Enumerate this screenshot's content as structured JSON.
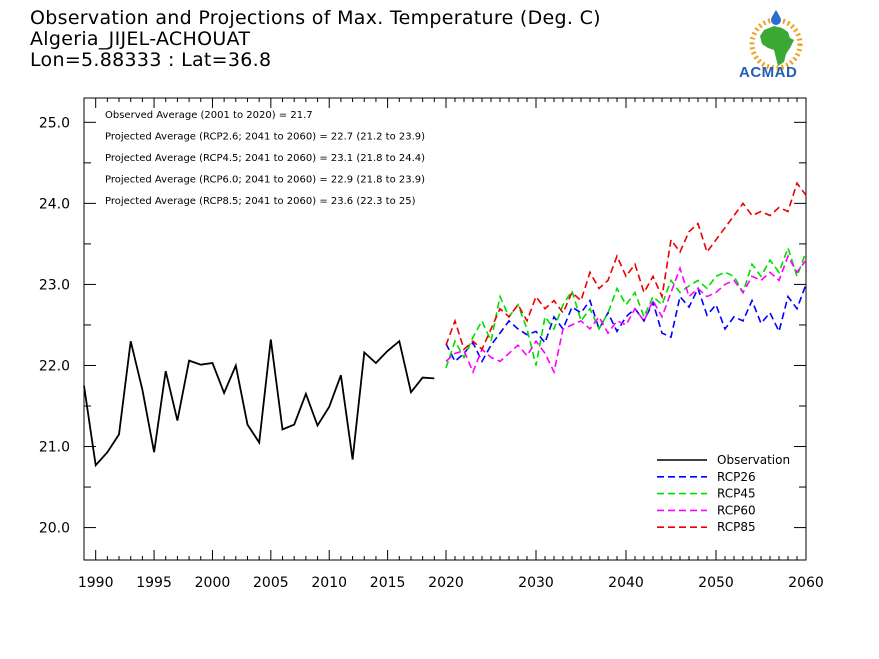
{
  "header": {
    "title": "Observation and Projections of Max. Temperature (Deg. C)",
    "station": "Algeria_JIJEL-ACHOUAT",
    "coords": "Lon=5.88333 : Lat=36.8"
  },
  "logo": {
    "text": "ACMAD",
    "colors": {
      "africa": "#3aa832",
      "sun": "#f0a020",
      "text": "#1f5fb4",
      "drop": "#2a6fd0"
    }
  },
  "chart_data": {
    "type": "line",
    "xlim": [
      1989,
      2060
    ],
    "ylim": [
      19.6,
      25.3
    ],
    "xticks": [
      1990,
      1995,
      2000,
      2005,
      2010,
      2015,
      2020,
      2030,
      2040,
      2050,
      2060
    ],
    "yticks": [
      20.0,
      21.0,
      22.0,
      23.0,
      24.0,
      25.0
    ],
    "ytick_labels": [
      "20.0",
      "21.0",
      "22.0",
      "23.0",
      "24.0",
      "25.0"
    ],
    "annotations": [
      "Observed Average (2001 to 2020) = 21.7",
      "Projected Average (RCP2.6; 2041 to 2060) = 22.7 (21.2 to 23.9)",
      "Projected Average (RCP4.5; 2041 to 2060) = 23.1 (21.8 to 24.4)",
      "Projected Average (RCP6.0; 2041 to 2060) = 22.9 (21.8 to 23.9)",
      "Projected Average (RCP8.5; 2041 to 2060) = 23.6 (22.3 to 25)"
    ],
    "legend_position": "bottom-right",
    "series": [
      {
        "name": "Observation",
        "color": "#000000",
        "dash": false,
        "x": [
          1989,
          1990,
          1991,
          1992,
          1993,
          1994,
          1995,
          1996,
          1997,
          1998,
          1999,
          2000,
          2001,
          2002,
          2003,
          2004,
          2005,
          2006,
          2007,
          2008,
          2009,
          2010,
          2011,
          2012,
          2013,
          2014,
          2015,
          2016,
          2017,
          2018,
          2019
        ],
        "y": [
          21.75,
          20.77,
          20.93,
          21.15,
          22.3,
          21.7,
          20.93,
          21.93,
          21.32,
          22.06,
          22.01,
          22.03,
          21.66,
          22.0,
          21.27,
          21.05,
          22.32,
          21.21,
          21.27,
          21.65,
          21.26,
          21.49,
          21.88,
          20.84,
          22.16,
          22.03,
          22.18,
          22.3,
          21.67,
          21.85,
          21.84
        ]
      },
      {
        "name": "RCP26",
        "color": "#0000ff",
        "dash": true,
        "x": [
          2020,
          2021,
          2022,
          2023,
          2024,
          2025,
          2026,
          2027,
          2028,
          2029,
          2030,
          2031,
          2032,
          2033,
          2034,
          2035,
          2036,
          2037,
          2038,
          2039,
          2040,
          2041,
          2042,
          2043,
          2044,
          2045,
          2046,
          2047,
          2048,
          2049,
          2050,
          2051,
          2052,
          2053,
          2054,
          2055,
          2056,
          2057,
          2058,
          2059,
          2060
        ],
        "y": [
          22.27,
          22.05,
          22.15,
          22.28,
          22.05,
          22.25,
          22.4,
          22.55,
          22.45,
          22.38,
          22.42,
          22.28,
          22.6,
          22.45,
          22.72,
          22.65,
          22.8,
          22.45,
          22.65,
          22.42,
          22.6,
          22.7,
          22.55,
          22.78,
          22.4,
          22.35,
          22.85,
          22.72,
          22.95,
          22.62,
          22.75,
          22.45,
          22.6,
          22.55,
          22.8,
          22.52,
          22.65,
          22.42,
          22.85,
          22.7,
          23.0
        ]
      },
      {
        "name": "RCP45",
        "color": "#00dd00",
        "dash": true,
        "x": [
          2020,
          2021,
          2022,
          2023,
          2024,
          2025,
          2026,
          2027,
          2028,
          2029,
          2030,
          2031,
          2032,
          2033,
          2034,
          2035,
          2036,
          2037,
          2038,
          2039,
          2040,
          2041,
          2042,
          2043,
          2044,
          2045,
          2046,
          2047,
          2048,
          2049,
          2050,
          2051,
          2052,
          2053,
          2054,
          2055,
          2056,
          2057,
          2058,
          2059,
          2060
        ],
        "y": [
          21.97,
          22.3,
          22.1,
          22.35,
          22.55,
          22.3,
          22.85,
          22.6,
          22.75,
          22.45,
          22.0,
          22.6,
          22.45,
          22.75,
          22.92,
          22.55,
          22.7,
          22.45,
          22.65,
          22.95,
          22.75,
          22.9,
          22.6,
          22.85,
          22.75,
          23.05,
          22.9,
          22.98,
          23.05,
          22.95,
          23.1,
          23.15,
          23.1,
          22.9,
          23.25,
          23.1,
          23.3,
          23.15,
          23.45,
          23.1,
          23.4
        ]
      },
      {
        "name": "RCP60",
        "color": "#ff00ff",
        "dash": true,
        "x": [
          2020,
          2021,
          2022,
          2023,
          2024,
          2025,
          2026,
          2027,
          2028,
          2029,
          2030,
          2031,
          2032,
          2033,
          2034,
          2035,
          2036,
          2037,
          2038,
          2039,
          2040,
          2041,
          2042,
          2043,
          2044,
          2045,
          2046,
          2047,
          2048,
          2049,
          2050,
          2051,
          2052,
          2053,
          2054,
          2055,
          2056,
          2057,
          2058,
          2059,
          2060
        ],
        "y": [
          22.05,
          22.15,
          22.18,
          21.92,
          22.2,
          22.1,
          22.05,
          22.15,
          22.25,
          22.12,
          22.3,
          22.15,
          21.92,
          22.45,
          22.5,
          22.55,
          22.45,
          22.6,
          22.4,
          22.55,
          22.5,
          22.7,
          22.55,
          22.8,
          22.6,
          22.9,
          23.2,
          22.85,
          22.95,
          22.85,
          22.9,
          23.0,
          23.05,
          22.9,
          23.1,
          23.05,
          23.15,
          23.05,
          23.35,
          23.15,
          23.3
        ]
      },
      {
        "name": "RCP85",
        "color": "#ee0000",
        "dash": true,
        "x": [
          2020,
          2021,
          2022,
          2023,
          2024,
          2025,
          2026,
          2027,
          2028,
          2029,
          2030,
          2031,
          2032,
          2033,
          2034,
          2035,
          2036,
          2037,
          2038,
          2039,
          2040,
          2041,
          2042,
          2043,
          2044,
          2045,
          2046,
          2047,
          2048,
          2049,
          2050,
          2051,
          2052,
          2053,
          2054,
          2055,
          2056,
          2057,
          2058,
          2059,
          2060
        ],
        "y": [
          22.25,
          22.55,
          22.2,
          22.3,
          22.2,
          22.45,
          22.7,
          22.6,
          22.75,
          22.55,
          22.85,
          22.7,
          22.8,
          22.65,
          22.9,
          22.8,
          23.15,
          22.95,
          23.05,
          23.35,
          23.1,
          23.25,
          22.9,
          23.1,
          22.85,
          23.55,
          23.4,
          23.65,
          23.75,
          23.4,
          23.55,
          23.7,
          23.85,
          24.0,
          23.85,
          23.9,
          23.85,
          23.95,
          23.9,
          24.25,
          24.1
        ]
      }
    ]
  }
}
